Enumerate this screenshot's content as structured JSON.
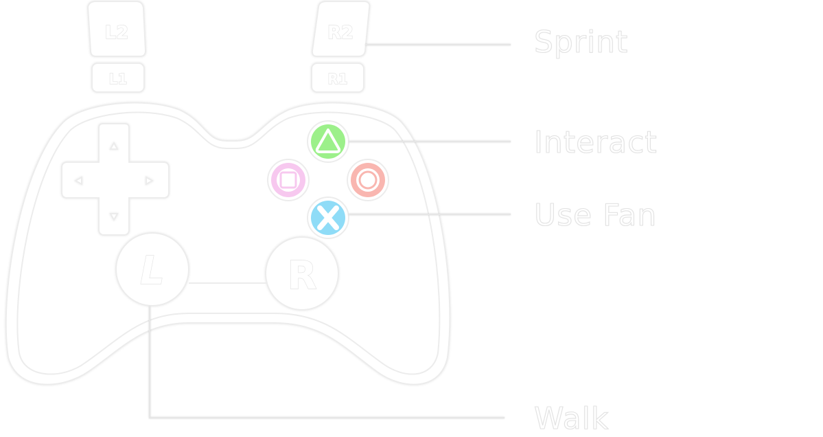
{
  "controller": {
    "triggers": {
      "l2": "L2",
      "l1": "L1",
      "r2": "R2",
      "r1": "R1"
    },
    "sticks": {
      "left": "L",
      "right": "R"
    },
    "face_buttons": {
      "triangle": {
        "icon": "triangle-icon",
        "color": "#9cf08a"
      },
      "square": {
        "icon": "square-icon",
        "color": "#f7c8ef"
      },
      "circle": {
        "icon": "circle-icon",
        "color": "#f9b6b0"
      },
      "cross": {
        "icon": "cross-icon",
        "color": "#8fdcf7"
      }
    },
    "dpad": {
      "icon": "dpad-icon"
    }
  },
  "mappings": {
    "sprint": "Sprint",
    "interact": "Interact",
    "use_fan": "Use Fan",
    "walk": "Walk"
  }
}
